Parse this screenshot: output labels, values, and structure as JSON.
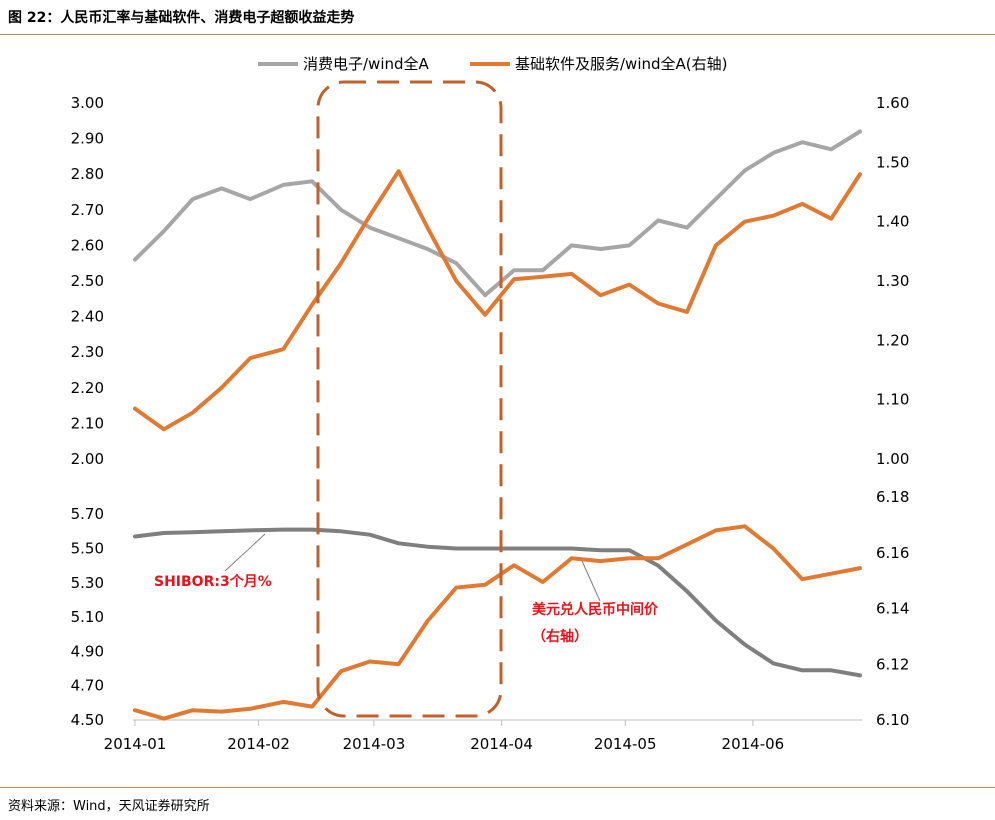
{
  "page": {
    "title": "图 22：人民币汇率与基础软件、消费电子超额收益走势",
    "source": "资料来源：Wind，天风证券研究所"
  },
  "colors": {
    "gray_series": "#a6a6a6",
    "dark_gray_series": "#7f7f7f",
    "orange_series": "#e07a32",
    "highlight_box": "#c0602a",
    "annotation_red": "#e8131a",
    "rule": "#c8894e"
  },
  "chart_data": [
    {
      "type": "line",
      "panel": "top",
      "title": "",
      "x": [
        "2014-01-02",
        "2014-01-09",
        "2014-01-16",
        "2014-01-23",
        "2014-01-30",
        "2014-02-07",
        "2014-02-14",
        "2014-02-21",
        "2014-02-28",
        "2014-03-07",
        "2014-03-14",
        "2014-03-21",
        "2014-03-28",
        "2014-04-04",
        "2014-04-11",
        "2014-04-18",
        "2014-04-25",
        "2014-05-02",
        "2014-05-09",
        "2014-05-16",
        "2014-05-23",
        "2014-05-30",
        "2014-06-06",
        "2014-06-13",
        "2014-06-20",
        "2014-06-27"
      ],
      "legend": {
        "position": "top"
      },
      "left_axis": {
        "ylim": [
          2.0,
          3.0
        ],
        "ticks": [
          "2.00",
          "2.10",
          "2.20",
          "2.30",
          "2.40",
          "2.50",
          "2.60",
          "2.70",
          "2.80",
          "2.90",
          "3.00"
        ]
      },
      "right_axis": {
        "ylim": [
          1.0,
          1.6
        ],
        "ticks": [
          "1.00",
          "1.10",
          "1.20",
          "1.30",
          "1.40",
          "1.50",
          "1.60"
        ]
      },
      "series": [
        {
          "name": "消费电子/wind全A",
          "axis": "left",
          "color": "#a6a6a6",
          "values": [
            2.56,
            2.64,
            2.73,
            2.76,
            2.73,
            2.77,
            2.78,
            2.7,
            2.65,
            2.62,
            2.59,
            2.55,
            2.46,
            2.53,
            2.53,
            2.6,
            2.59,
            2.6,
            2.67,
            2.65,
            2.73,
            2.81,
            2.86,
            2.89,
            2.87,
            2.92
          ]
        },
        {
          "name": "基础软件及服务/wind全A(右轴)",
          "axis": "right",
          "color": "#e07a32",
          "values": [
            1.085,
            1.05,
            1.078,
            1.12,
            1.17,
            1.185,
            1.26,
            1.33,
            1.41,
            1.485,
            1.39,
            1.3,
            1.243,
            1.303,
            1.307,
            1.312,
            1.276,
            1.294,
            1.262,
            1.248,
            1.36,
            1.4,
            1.41,
            1.43,
            1.405,
            1.48
          ]
        }
      ]
    },
    {
      "type": "line",
      "panel": "bottom",
      "title": "",
      "x": [
        "2014-01-02",
        "2014-01-09",
        "2014-01-16",
        "2014-01-23",
        "2014-01-30",
        "2014-02-07",
        "2014-02-14",
        "2014-02-21",
        "2014-02-28",
        "2014-03-07",
        "2014-03-14",
        "2014-03-21",
        "2014-03-28",
        "2014-04-04",
        "2014-04-11",
        "2014-04-18",
        "2014-04-25",
        "2014-05-02",
        "2014-05-09",
        "2014-05-16",
        "2014-05-23",
        "2014-05-30",
        "2014-06-06",
        "2014-06-13",
        "2014-06-20",
        "2014-06-27"
      ],
      "x_ticks": [
        "2014-01",
        "2014-02",
        "2014-03",
        "2014-04",
        "2014-05",
        "2014-06"
      ],
      "left_axis": {
        "ylim": [
          4.5,
          5.8
        ],
        "ticks": [
          "4.50",
          "4.70",
          "4.90",
          "5.10",
          "5.30",
          "5.50",
          "5.70"
        ]
      },
      "right_axis": {
        "ylim": [
          6.1,
          6.18
        ],
        "ticks": [
          "6.10",
          "6.12",
          "6.14",
          "6.16",
          "6.18"
        ]
      },
      "series": [
        {
          "name": "SHIBOR:3个月%",
          "axis": "left",
          "color": "#7f7f7f",
          "values": [
            5.57,
            5.59,
            5.595,
            5.6,
            5.605,
            5.61,
            5.61,
            5.6,
            5.58,
            5.53,
            5.51,
            5.5,
            5.5,
            5.5,
            5.5,
            5.5,
            5.49,
            5.49,
            5.4,
            5.25,
            5.08,
            4.94,
            4.83,
            4.79,
            4.79,
            4.76
          ]
        },
        {
          "name": "美元兑人民币中间价",
          "axis": "right",
          "color": "#e07a32",
          "values": [
            6.1035,
            6.1005,
            6.1035,
            6.103,
            6.104,
            6.1065,
            6.1048,
            6.1175,
            6.121,
            6.12,
            6.1355,
            6.1475,
            6.1485,
            6.1555,
            6.1495,
            6.158,
            6.157,
            6.158,
            6.158,
            6.163,
            6.168,
            6.1695,
            6.1615,
            6.1505,
            6.1525,
            6.1545
          ]
        }
      ],
      "annotations": [
        {
          "text": "SHIBOR:3个月%"
        },
        {
          "text": "美元兑人民币中间价"
        },
        {
          "text": "（右轴）"
        }
      ]
    }
  ]
}
